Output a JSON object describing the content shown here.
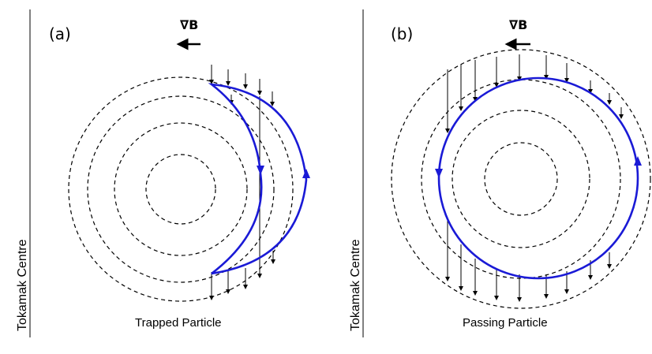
{
  "panels": [
    {
      "label": "(a)",
      "gradient_label": "∇B",
      "caption": "Trapped Particle",
      "side_label": "Tokamak Centre"
    },
    {
      "label": "(b)",
      "gradient_label": "∇B",
      "caption": "Passing Particle",
      "side_label": "Tokamak Centre"
    }
  ],
  "colors": {
    "orbit": "#1a1ad6",
    "flux_surface": "#000000",
    "background": "#ffffff"
  },
  "icons": {
    "gradient_arrow": "left-arrow-icon",
    "drift_vector": "down-arrow-icon",
    "orbit_direction": "triangle-arrow-icon"
  }
}
